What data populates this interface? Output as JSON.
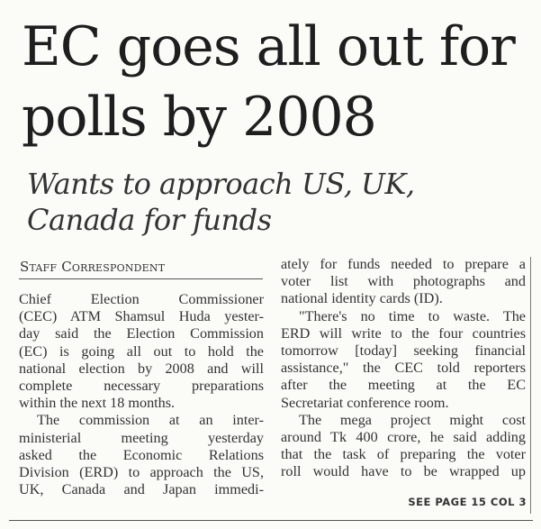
{
  "headline": [
    "EC goes all out for",
    "polls by 2008"
  ],
  "subheadline": [
    "Wants to approach US, UK,",
    "Canada for funds"
  ],
  "byline": "Staff Correspondent",
  "left_column": [
    {
      "text": "Chief Election Commissioner",
      "cls": ""
    },
    {
      "text": "(CEC) ATM Shamsul Huda yester-",
      "cls": ""
    },
    {
      "text": "day said the Election Commission",
      "cls": ""
    },
    {
      "text": "(EC) is going all out to hold the",
      "cls": ""
    },
    {
      "text": "national election by 2008 and will",
      "cls": ""
    },
    {
      "text": "complete necessary preparations",
      "cls": ""
    },
    {
      "text": "within the next 18 months.",
      "cls": "last"
    },
    {
      "text": "The commission at an inter-",
      "cls": "indent"
    },
    {
      "text": "ministerial meeting yesterday",
      "cls": ""
    },
    {
      "text": "asked the Economic Relations",
      "cls": ""
    },
    {
      "text": "Division (ERD) to approach the US,",
      "cls": ""
    },
    {
      "text": "UK, Canada and Japan immedi-",
      "cls": ""
    }
  ],
  "right_column": [
    {
      "text": "ately for funds needed to prepare a",
      "cls": ""
    },
    {
      "text": "voter list with photographs and",
      "cls": ""
    },
    {
      "text": "national identity cards (ID).",
      "cls": "last"
    },
    {
      "text": "\"There's no time to waste. The",
      "cls": "indent"
    },
    {
      "text": "ERD will write to the four countries",
      "cls": ""
    },
    {
      "text": "tomorrow [today] seeking financial",
      "cls": ""
    },
    {
      "text": "assistance,\" the CEC told reporters",
      "cls": ""
    },
    {
      "text": "after the meeting at the EC",
      "cls": ""
    },
    {
      "text": "Secretariat conference room.",
      "cls": "last"
    },
    {
      "text": "The mega project might cost",
      "cls": "indent"
    },
    {
      "text": "around Tk 400 crore, he said adding",
      "cls": ""
    },
    {
      "text": "that the task of preparing the voter",
      "cls": ""
    },
    {
      "text": "roll would have to be wrapped up",
      "cls": ""
    }
  ],
  "continuation": "SEE PAGE 15 COL 3"
}
